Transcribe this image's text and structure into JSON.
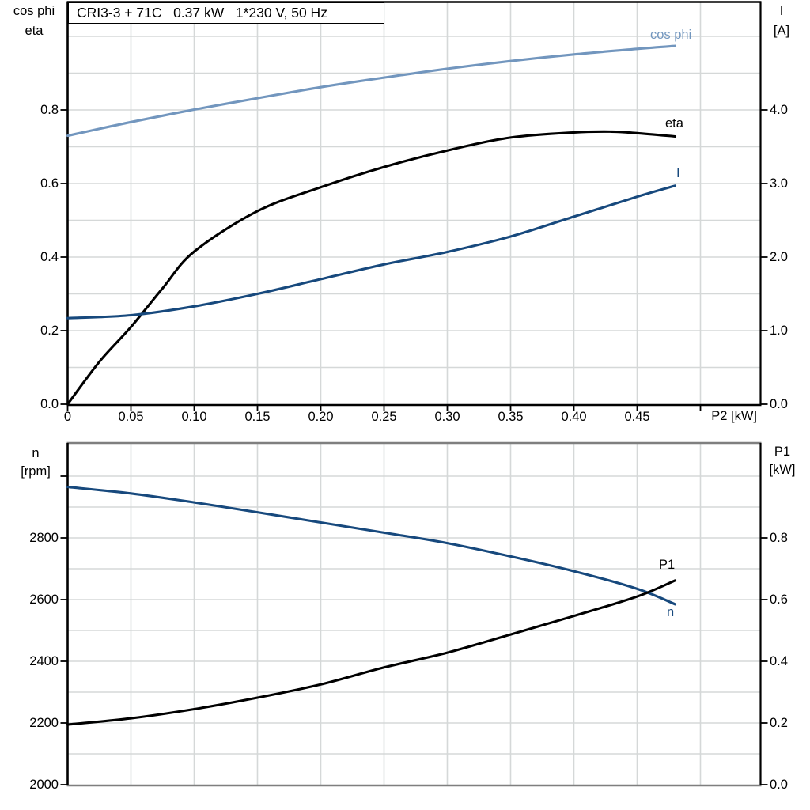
{
  "title": {
    "model_power_voltage": "CRI3-3 + 71C   0.37 kW   1*230 V, 50 Hz"
  },
  "colors": {
    "cos_phi_blue": "#7296BE",
    "current_blue": "#17497D",
    "black": "#000000",
    "grid": "#D5D8D8",
    "gray_axis": "#7F7F7F"
  },
  "chart_data": [
    {
      "type": "line",
      "name": "motor-electrical-curves",
      "x_axis": {
        "label": "P2 [kW]",
        "min": 0,
        "max": 0.548,
        "tick_values": [
          0,
          0.05,
          0.1,
          0.15,
          0.2,
          0.25,
          0.3,
          0.35,
          0.4,
          0.45,
          0.5
        ],
        "tick_labels": [
          "0",
          "0.05",
          "0.10",
          "0.15",
          "0.20",
          "0.25",
          "0.30",
          "0.35",
          "0.40",
          "0.45"
        ]
      },
      "y_axis_left": {
        "title_lines": [
          "cos phi",
          "eta"
        ],
        "ylim": [
          0,
          1.1
        ],
        "tick_values": [
          0.0,
          0.2,
          0.4,
          0.6,
          0.8
        ],
        "tick_labels": [
          "0.0",
          "0.2",
          "0.4",
          "0.6",
          "0.8"
        ],
        "grid_values": [
          0.1,
          0.2,
          0.3,
          0.4,
          0.5,
          0.6,
          0.7,
          0.8,
          0.9,
          1.0
        ]
      },
      "y_axis_right": {
        "title_lines": [
          "I",
          "[A]"
        ],
        "ylim": [
          0,
          5.5
        ],
        "tick_values": [
          0.0,
          1.0,
          2.0,
          3.0,
          4.0
        ],
        "tick_labels": [
          "0.0",
          "1.0",
          "2.0",
          "3.0",
          "4.0"
        ]
      },
      "series": [
        {
          "name": "cos phi",
          "axis": "left",
          "color_key": "cos_phi_blue",
          "x": [
            0,
            0.05,
            0.1,
            0.15,
            0.2,
            0.25,
            0.3,
            0.35,
            0.4,
            0.45,
            0.48
          ],
          "y": [
            0.73,
            0.767,
            0.801,
            0.832,
            0.862,
            0.888,
            0.912,
            0.933,
            0.951,
            0.966,
            0.974
          ]
        },
        {
          "name": "eta",
          "axis": "left",
          "color_key": "black",
          "x": [
            0,
            0.025,
            0.05,
            0.075,
            0.1,
            0.15,
            0.2,
            0.25,
            0.3,
            0.35,
            0.4,
            0.43,
            0.45,
            0.48
          ],
          "y": [
            0,
            0.115,
            0.21,
            0.315,
            0.415,
            0.525,
            0.59,
            0.645,
            0.69,
            0.725,
            0.739,
            0.741,
            0.737,
            0.728
          ]
        },
        {
          "name": "I",
          "axis": "right",
          "color_key": "current_blue",
          "x": [
            0,
            0.05,
            0.1,
            0.15,
            0.2,
            0.25,
            0.3,
            0.35,
            0.4,
            0.45,
            0.48
          ],
          "y": [
            1.17,
            1.21,
            1.33,
            1.5,
            1.7,
            1.9,
            2.07,
            2.28,
            2.55,
            2.82,
            2.97
          ]
        }
      ]
    },
    {
      "type": "line",
      "name": "speed-and-input-power-curves",
      "x_axis": {
        "label": "",
        "min": 0,
        "max": 0.548,
        "tick_values": [
          0.05,
          0.1,
          0.15,
          0.2,
          0.25,
          0.3,
          0.35,
          0.4,
          0.45,
          0.5
        ],
        "tick_labels": []
      },
      "y_axis_left": {
        "title_lines": [
          "n",
          "[rpm]"
        ],
        "ylim": [
          2000,
          3110
        ],
        "tick_values": [
          2000,
          2200,
          2400,
          2600,
          2800,
          3000
        ],
        "tick_labels": [
          "2000",
          "2200",
          "2400",
          "2600",
          "2800"
        ],
        "grid_values": [
          2100,
          2200,
          2300,
          2400,
          2500,
          2600,
          2700,
          2800,
          2900,
          3000
        ]
      },
      "y_axis_right": {
        "title_lines": [
          "P1",
          "[kW]"
        ],
        "ylim": [
          0,
          1.11
        ],
        "tick_values": [
          0.0,
          0.2,
          0.4,
          0.6,
          0.8
        ],
        "tick_labels": [
          "0.0",
          "0.2",
          "0.4",
          "0.6",
          "0.8"
        ]
      },
      "series": [
        {
          "name": "n",
          "axis": "left",
          "color_key": "current_blue",
          "x": [
            0,
            0.05,
            0.1,
            0.15,
            0.2,
            0.25,
            0.3,
            0.35,
            0.4,
            0.45,
            0.48
          ],
          "y": [
            2965,
            2944,
            2915,
            2883,
            2850,
            2817,
            2783,
            2740,
            2692,
            2635,
            2585
          ]
        },
        {
          "name": "P1",
          "axis": "right",
          "color_key": "black",
          "x": [
            0,
            0.05,
            0.1,
            0.15,
            0.2,
            0.25,
            0.3,
            0.35,
            0.4,
            0.45,
            0.48
          ],
          "y": [
            0.195,
            0.215,
            0.245,
            0.282,
            0.325,
            0.38,
            0.428,
            0.487,
            0.547,
            0.61,
            0.662
          ]
        }
      ]
    }
  ]
}
